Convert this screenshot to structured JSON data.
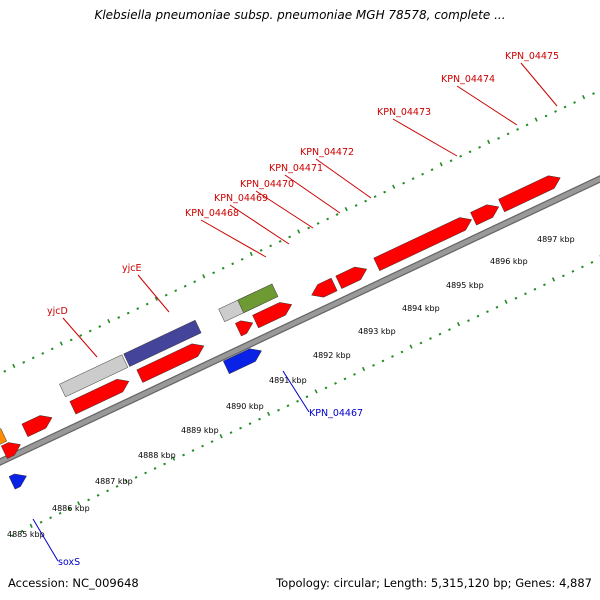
{
  "title": "Klebsiella pneumoniae subsp. pneumoniae MGH 78578, complete ...",
  "accession": "Accession: NC_009648",
  "summary": "Topology: circular; Length: 5,315,120 bp; Genes: 4,887",
  "colors": {
    "backbone": "#999999",
    "tick": "#228b22",
    "forward_label": "#cc0000",
    "reverse_label": "#0000cc",
    "red": "#ff0000",
    "blue": "#0a22e6",
    "purple": "#44449a",
    "gray": "#cccccc",
    "olive": "#6d9a33",
    "orange": "#ff8c00"
  },
  "ticks": [
    {
      "label": "4885 kbp"
    },
    {
      "label": "4886 kbp"
    },
    {
      "label": "4887 kbp"
    },
    {
      "label": "4888 kbp"
    },
    {
      "label": "4889 kbp"
    },
    {
      "label": "4890 kbp"
    },
    {
      "label": "4891 kbp"
    },
    {
      "label": "4892 kbp"
    },
    {
      "label": "4893 kbp"
    },
    {
      "label": "4894 kbp"
    },
    {
      "label": "4895 kbp"
    },
    {
      "label": "4896 kbp"
    },
    {
      "label": "4897 kbp"
    }
  ],
  "forward_labels": [
    {
      "text": "yjcD"
    },
    {
      "text": "yjcE"
    },
    {
      "text": "KPN_04468"
    },
    {
      "text": "KPN_04469"
    },
    {
      "text": "KPN_04470"
    },
    {
      "text": "KPN_04471"
    },
    {
      "text": "KPN_04472"
    },
    {
      "text": "KPN_04473"
    },
    {
      "text": "KPN_04474"
    },
    {
      "text": "KPN_04475"
    }
  ],
  "reverse_labels": [
    {
      "text": "KPN_04467"
    },
    {
      "text": "soxS"
    }
  ]
}
